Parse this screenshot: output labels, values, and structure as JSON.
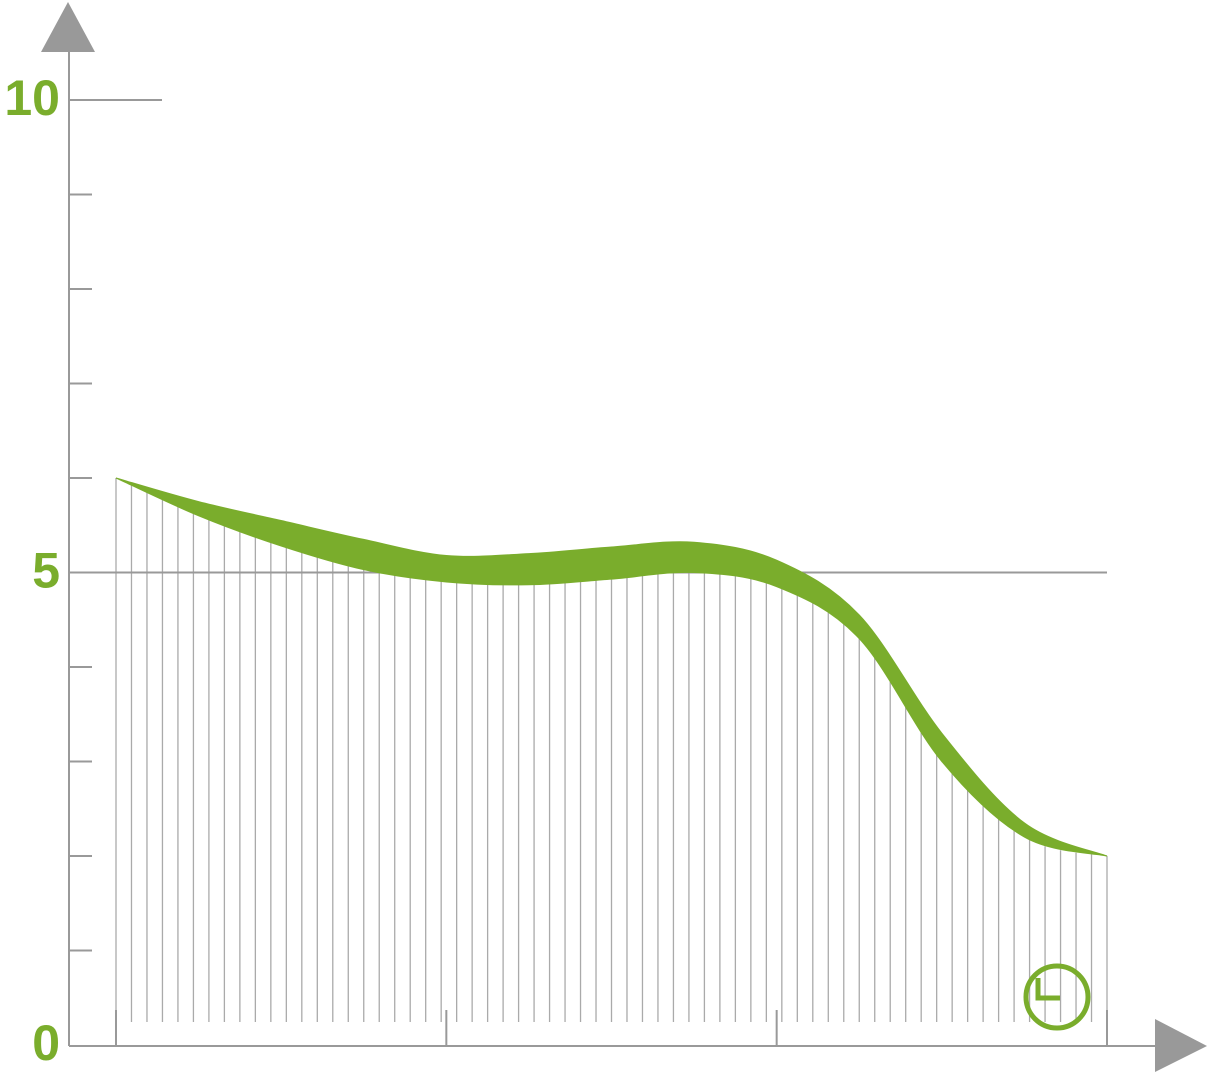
{
  "chart_data": {
    "type": "band",
    "x": [
      0,
      1,
      2,
      3,
      4,
      5,
      6,
      7,
      8,
      9,
      10,
      11,
      12
    ],
    "xlim": [
      0,
      12
    ],
    "upper": [
      6.0,
      5.75,
      5.55,
      5.35,
      5.18,
      5.2,
      5.27,
      5.32,
      5.13,
      4.55,
      3.3,
      2.35,
      2.0
    ],
    "lower": [
      6.0,
      5.6,
      5.28,
      5.03,
      4.9,
      4.87,
      4.93,
      5.0,
      4.85,
      4.3,
      3.0,
      2.2,
      2.0
    ],
    "color": "#7aad2c",
    "ylim": [
      0,
      10
    ],
    "yticks": [
      0,
      5,
      10
    ],
    "minor_yticks": [
      1,
      2,
      3,
      4,
      6,
      7,
      8,
      9
    ],
    "reference_line": 5
  }
}
